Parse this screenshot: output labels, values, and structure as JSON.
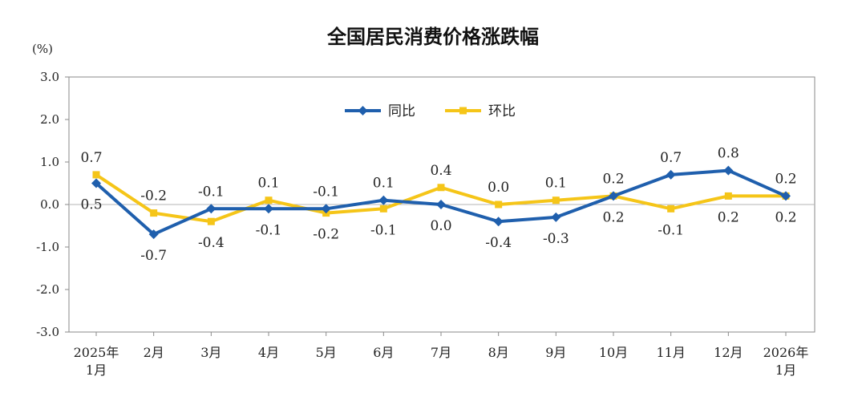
{
  "chart_data": {
    "type": "line",
    "title": "全国居民消费价格涨跌幅",
    "unit": "(%)",
    "ylim": [
      -3.0,
      3.0
    ],
    "y_ticks": [
      "3.0",
      "2.0",
      "1.0",
      "0.0",
      "-1.0",
      "-2.0",
      "-3.0"
    ],
    "y_tick_values": [
      3.0,
      2.0,
      1.0,
      0.0,
      -1.0,
      -2.0,
      -3.0
    ],
    "categories": [
      [
        "2025年",
        "1月"
      ],
      [
        "2月"
      ],
      [
        "3月"
      ],
      [
        "4月"
      ],
      [
        "5月"
      ],
      [
        "6月"
      ],
      [
        "7月"
      ],
      [
        "8月"
      ],
      [
        "9月"
      ],
      [
        "10月"
      ],
      [
        "11月"
      ],
      [
        "12月"
      ],
      [
        "2026年",
        "1月"
      ]
    ],
    "legend_position": "top-center",
    "grid": false,
    "series": [
      {
        "name": "同比",
        "color": "#1f5fad",
        "marker": "diamond",
        "values": [
          0.5,
          -0.7,
          -0.1,
          -0.1,
          -0.1,
          0.1,
          0.0,
          -0.4,
          -0.3,
          0.2,
          0.7,
          0.8,
          0.2
        ],
        "labels": [
          "0.5",
          "-0.7",
          "-0.1",
          "-0.1",
          "-0.1",
          "0.1",
          "0.0",
          "-0.4",
          "-0.3",
          "0.2",
          "0.7",
          "0.8",
          "0.2"
        ]
      },
      {
        "name": "环比",
        "color": "#f5c518",
        "marker": "square",
        "values": [
          0.7,
          -0.2,
          -0.4,
          0.1,
          -0.2,
          -0.1,
          0.4,
          0.0,
          0.1,
          0.2,
          -0.1,
          0.2,
          0.2
        ],
        "labels": [
          "0.7",
          "-0.2",
          "-0.4",
          "0.1",
          "-0.2",
          "-0.1",
          "0.4",
          "0.0",
          "0.1",
          "0.2",
          "-0.1",
          "0.2",
          "0.2"
        ]
      }
    ]
  }
}
